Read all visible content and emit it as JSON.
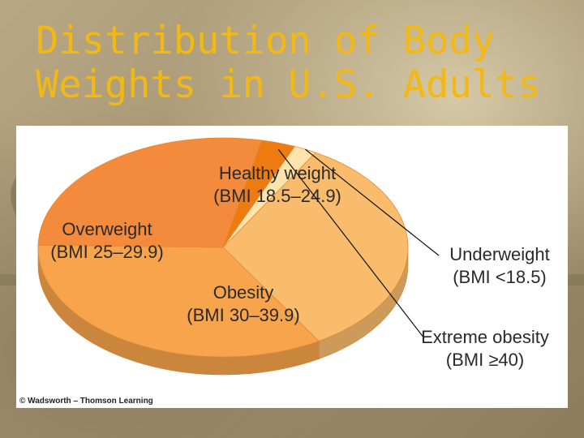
{
  "title_lines": [
    "Distribution of Body",
    "Weights in U.S. Adults"
  ],
  "credit": "© Wadsworth – Thomson Learning",
  "colors": {
    "title": "#f2b814",
    "healthy": "#f9bc6d",
    "overweight": "#f7a44c",
    "obesity": "#f48a3b",
    "extreme": "#ee7a12",
    "underweight": "#fde4ad"
  },
  "chart_data": {
    "type": "pie",
    "title": "Distribution of Body Weights in U.S. Adults",
    "slices": [
      {
        "name": "Healthy weight",
        "range": "(BMI 18.5–24.9)",
        "value": 33
      },
      {
        "name": "Overweight",
        "range": "(BMI 25–29.9)",
        "value": 34
      },
      {
        "name": "Obesity",
        "range": "(BMI 30–39.9)",
        "value": 28
      },
      {
        "name": "Extreme obesity",
        "range": "(BMI ≥40)",
        "value": 3
      },
      {
        "name": "Underweight",
        "range": "(BMI <18.5)",
        "value": 2
      }
    ]
  }
}
